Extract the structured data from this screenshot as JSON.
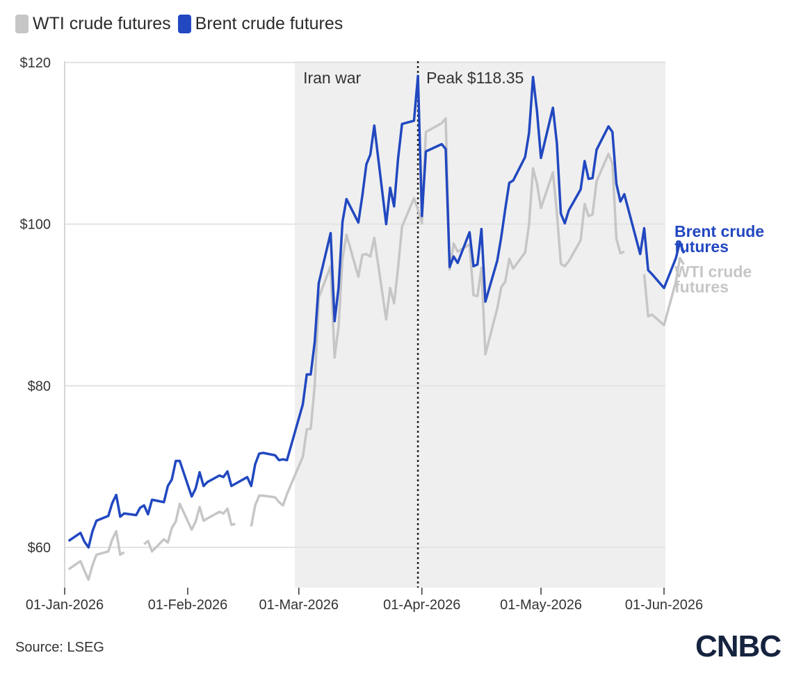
{
  "colors": {
    "brent": "#2148c0",
    "wti": "#c6c6c6",
    "shade": "#efefef",
    "grid": "#e3e3e3"
  },
  "legend": [
    {
      "label": "WTI crude futures",
      "color": "#c6c6c6"
    },
    {
      "label": "Brent crude futures",
      "color": "#2148c0"
    }
  ],
  "source": "Source: LSEG",
  "logo": "CNBC",
  "chart_data": {
    "type": "line",
    "title": "",
    "xlabel": "",
    "ylabel": "",
    "ylim": [
      55,
      120
    ],
    "xlim": [
      "2026-01-01",
      "2026-06-01"
    ],
    "grid": "horizontal",
    "legend_position": "top-left",
    "y_ticks": [
      {
        "value": 60,
        "label": "$60"
      },
      {
        "value": 80,
        "label": "$80"
      },
      {
        "value": 100,
        "label": "$100"
      },
      {
        "value": 120,
        "label": "$120"
      }
    ],
    "x_ticks": [
      {
        "date": "2026-01-01",
        "label": "01-Jan-2026"
      },
      {
        "date": "2026-02-01",
        "label": "01-Feb-2026"
      },
      {
        "date": "2026-03-01",
        "label": "01-Mar-2026"
      },
      {
        "date": "2026-04-01",
        "label": "01-Apr-2026"
      },
      {
        "date": "2026-05-01",
        "label": "01-May-2026"
      },
      {
        "date": "2026-06-01",
        "label": "01-Jun-2026"
      }
    ],
    "shaded_region": {
      "start": "2026-02-28",
      "label": "Iran war"
    },
    "peak_marker": {
      "date": "2026-03-31",
      "label": "Peak $118.35",
      "value": 118.35
    },
    "series": [
      {
        "name": "Brent crude futures",
        "end_label": "Brent crude futures",
        "points": [
          [
            "2026-01-02",
            60.8
          ],
          [
            "2026-01-05",
            61.8
          ],
          [
            "2026-01-06",
            60.7
          ],
          [
            "2026-01-07",
            60.0
          ],
          [
            "2026-01-08",
            62.0
          ],
          [
            "2026-01-09",
            63.3
          ],
          [
            "2026-01-12",
            63.9
          ],
          [
            "2026-01-13",
            65.5
          ],
          [
            "2026-01-14",
            66.5
          ],
          [
            "2026-01-15",
            63.8
          ],
          [
            "2026-01-16",
            64.2
          ],
          [
            "2026-01-19",
            64.0
          ],
          [
            "2026-01-20",
            64.9
          ],
          [
            "2026-01-21",
            65.2
          ],
          [
            "2026-01-22",
            64.1
          ],
          [
            "2026-01-23",
            65.9
          ],
          [
            "2026-01-26",
            65.6
          ],
          [
            "2026-01-27",
            67.6
          ],
          [
            "2026-01-28",
            68.4
          ],
          [
            "2026-01-29",
            70.7
          ],
          [
            "2026-01-30",
            70.7
          ],
          [
            "2026-02-02",
            66.3
          ],
          [
            "2026-02-03",
            67.3
          ],
          [
            "2026-02-04",
            69.3
          ],
          [
            "2026-02-05",
            67.6
          ],
          [
            "2026-02-06",
            68.1
          ],
          [
            "2026-02-09",
            68.9
          ],
          [
            "2026-02-10",
            68.7
          ],
          [
            "2026-02-11",
            69.4
          ],
          [
            "2026-02-12",
            67.6
          ],
          [
            "2026-02-16",
            68.7
          ],
          [
            "2026-02-17",
            67.6
          ],
          [
            "2026-02-18",
            70.3
          ],
          [
            "2026-02-19",
            71.6
          ],
          [
            "2026-02-20",
            71.7
          ],
          [
            "2026-02-23",
            71.4
          ],
          [
            "2026-02-24",
            70.8
          ],
          [
            "2026-02-25",
            70.9
          ],
          [
            "2026-02-26",
            70.8
          ],
          [
            "2026-03-02",
            77.7
          ],
          [
            "2026-03-03",
            81.4
          ],
          [
            "2026-03-04",
            81.4
          ],
          [
            "2026-03-05",
            85.4
          ],
          [
            "2026-03-06",
            92.7
          ],
          [
            "2026-03-09",
            98.9
          ],
          [
            "2026-03-10",
            88.0
          ],
          [
            "2026-03-11",
            92.1
          ],
          [
            "2026-03-12",
            100.3
          ],
          [
            "2026-03-13",
            103.1
          ],
          [
            "2026-03-16",
            100.2
          ],
          [
            "2026-03-17",
            103.5
          ],
          [
            "2026-03-18",
            107.4
          ],
          [
            "2026-03-19",
            108.6
          ],
          [
            "2026-03-20",
            112.2
          ],
          [
            "2026-03-23",
            100.0
          ],
          [
            "2026-03-24",
            104.5
          ],
          [
            "2026-03-25",
            102.2
          ],
          [
            "2026-03-26",
            108.1
          ],
          [
            "2026-03-27",
            112.4
          ],
          [
            "2026-03-30",
            112.8
          ],
          [
            "2026-03-31",
            118.35
          ],
          [
            "2026-04-01",
            101.0
          ],
          [
            "2026-04-02",
            109.0
          ],
          [
            "2026-04-06",
            109.9
          ],
          [
            "2026-04-07",
            109.3
          ],
          [
            "2026-04-08",
            94.7
          ],
          [
            "2026-04-09",
            96.0
          ],
          [
            "2026-04-10",
            95.2
          ],
          [
            "2026-04-13",
            99.0
          ],
          [
            "2026-04-14",
            94.8
          ],
          [
            "2026-04-15",
            95.0
          ],
          [
            "2026-04-16",
            99.4
          ],
          [
            "2026-04-17",
            90.4
          ],
          [
            "2026-04-20",
            95.5
          ],
          [
            "2026-04-21",
            98.4
          ],
          [
            "2026-04-22",
            101.9
          ],
          [
            "2026-04-23",
            105.1
          ],
          [
            "2026-04-24",
            105.4
          ],
          [
            "2026-04-27",
            108.3
          ],
          [
            "2026-04-28",
            111.3
          ],
          [
            "2026-04-29",
            118.2
          ],
          [
            "2026-04-30",
            114.0
          ],
          [
            "2026-05-01",
            108.2
          ],
          [
            "2026-05-04",
            114.4
          ],
          [
            "2026-05-05",
            110.0
          ],
          [
            "2026-05-06",
            101.3
          ],
          [
            "2026-05-07",
            100.1
          ],
          [
            "2026-05-08",
            101.7
          ],
          [
            "2026-05-11",
            104.3
          ],
          [
            "2026-05-12",
            107.8
          ],
          [
            "2026-05-13",
            105.6
          ],
          [
            "2026-05-14",
            105.7
          ],
          [
            "2026-05-15",
            109.2
          ],
          [
            "2026-05-18",
            112.1
          ],
          [
            "2026-05-19",
            111.4
          ],
          [
            "2026-05-20",
            105.0
          ],
          [
            "2026-05-21",
            102.8
          ],
          [
            "2026-05-22",
            103.7
          ],
          [
            "2026-05-26",
            96.3
          ],
          [
            "2026-05-27",
            99.5
          ],
          [
            "2026-05-28",
            94.3
          ],
          [
            "2026-05-29",
            93.8
          ],
          [
            "2026-06-01",
            92.1
          ],
          [
            "2026-06-04",
            95.8
          ],
          [
            "2026-06-05",
            97.8
          ],
          [
            "2026-06-06",
            96.4
          ]
        ]
      },
      {
        "name": "WTI crude futures",
        "end_label": "WTI crude futures",
        "points": [
          [
            "2026-01-02",
            57.3
          ],
          [
            "2026-01-05",
            58.3
          ],
          [
            "2026-01-06",
            57.1
          ],
          [
            "2026-01-07",
            56.0
          ],
          [
            "2026-01-08",
            57.8
          ],
          [
            "2026-01-09",
            59.1
          ],
          [
            "2026-01-12",
            59.5
          ],
          [
            "2026-01-13",
            61.0
          ],
          [
            "2026-01-14",
            62.0
          ],
          [
            "2026-01-15",
            59.1
          ],
          [
            "2026-01-16",
            59.4
          ],
          null,
          [
            "2026-01-21",
            60.4
          ],
          [
            "2026-01-22",
            60.8
          ],
          [
            "2026-01-23",
            59.5
          ],
          [
            "2026-01-26",
            61.0
          ],
          [
            "2026-01-27",
            60.6
          ],
          [
            "2026-01-28",
            62.4
          ],
          [
            "2026-01-29",
            63.2
          ],
          [
            "2026-01-30",
            65.4
          ],
          [
            "2026-02-02",
            62.2
          ],
          [
            "2026-02-03",
            63.2
          ],
          [
            "2026-02-04",
            65.0
          ],
          [
            "2026-02-05",
            63.3
          ],
          [
            "2026-02-06",
            63.6
          ],
          [
            "2026-02-09",
            64.4
          ],
          [
            "2026-02-10",
            64.2
          ],
          [
            "2026-02-11",
            64.8
          ],
          [
            "2026-02-12",
            62.8
          ],
          [
            "2026-02-13",
            62.9
          ],
          null,
          [
            "2026-02-17",
            62.6
          ],
          [
            "2026-02-18",
            65.2
          ],
          [
            "2026-02-19",
            66.4
          ],
          [
            "2026-02-20",
            66.4
          ],
          [
            "2026-02-23",
            66.2
          ],
          [
            "2026-02-24",
            65.6
          ],
          [
            "2026-02-25",
            65.2
          ],
          [
            "2026-02-26",
            66.6
          ],
          [
            "2026-03-02",
            71.2
          ],
          [
            "2026-03-03",
            74.6
          ],
          [
            "2026-03-04",
            74.7
          ],
          [
            "2026-03-05",
            80.0
          ],
          [
            "2026-03-06",
            90.9
          ],
          [
            "2026-03-09",
            94.8
          ],
          [
            "2026-03-10",
            83.5
          ],
          [
            "2026-03-11",
            87.3
          ],
          [
            "2026-03-12",
            95.7
          ],
          [
            "2026-03-13",
            98.7
          ],
          [
            "2026-03-16",
            93.5
          ],
          [
            "2026-03-17",
            96.2
          ],
          [
            "2026-03-18",
            96.3
          ],
          [
            "2026-03-19",
            96.0
          ],
          [
            "2026-03-20",
            98.3
          ],
          [
            "2026-03-23",
            88.2
          ],
          [
            "2026-03-24",
            92.1
          ],
          [
            "2026-03-25",
            90.2
          ],
          [
            "2026-03-26",
            94.6
          ],
          [
            "2026-03-27",
            99.7
          ],
          [
            "2026-03-30",
            103.2
          ],
          [
            "2026-03-31",
            101.8
          ],
          [
            "2026-04-01",
            100.1
          ],
          [
            "2026-04-02",
            111.4
          ],
          [
            "2026-04-06",
            112.5
          ],
          [
            "2026-04-07",
            113.1
          ],
          [
            "2026-04-08",
            94.4
          ],
          [
            "2026-04-09",
            97.6
          ],
          [
            "2026-04-10",
            96.6
          ],
          [
            "2026-04-13",
            97.5
          ],
          [
            "2026-04-14",
            91.2
          ],
          [
            "2026-04-15",
            91.1
          ],
          [
            "2026-04-16",
            94.6
          ],
          [
            "2026-04-17",
            83.9
          ],
          [
            "2026-04-20",
            89.6
          ],
          [
            "2026-04-21",
            92.2
          ],
          [
            "2026-04-22",
            92.9
          ],
          [
            "2026-04-23",
            95.7
          ],
          [
            "2026-04-24",
            94.5
          ],
          [
            "2026-04-27",
            96.5
          ],
          [
            "2026-04-28",
            100.0
          ],
          [
            "2026-04-29",
            106.9
          ],
          [
            "2026-04-30",
            105.0
          ],
          [
            "2026-05-01",
            102.0
          ],
          [
            "2026-05-04",
            106.4
          ],
          [
            "2026-05-05",
            101.4
          ],
          [
            "2026-05-06",
            95.1
          ],
          [
            "2026-05-07",
            94.8
          ],
          [
            "2026-05-08",
            95.4
          ],
          [
            "2026-05-11",
            98.0
          ],
          [
            "2026-05-12",
            102.5
          ],
          [
            "2026-05-13",
            101.0
          ],
          [
            "2026-05-14",
            101.2
          ],
          [
            "2026-05-15",
            105.3
          ],
          [
            "2026-05-18",
            108.7
          ],
          [
            "2026-05-19",
            107.5
          ],
          [
            "2026-05-20",
            98.2
          ],
          [
            "2026-05-21",
            96.4
          ],
          [
            "2026-05-22",
            96.6
          ],
          null,
          [
            "2026-05-27",
            93.8
          ],
          [
            "2026-05-28",
            88.6
          ],
          [
            "2026-05-29",
            88.8
          ],
          [
            "2026-06-01",
            87.5
          ],
          [
            "2026-06-04",
            92.9
          ],
          [
            "2026-06-05",
            95.8
          ],
          [
            "2026-06-06",
            95.0
          ]
        ]
      }
    ]
  }
}
